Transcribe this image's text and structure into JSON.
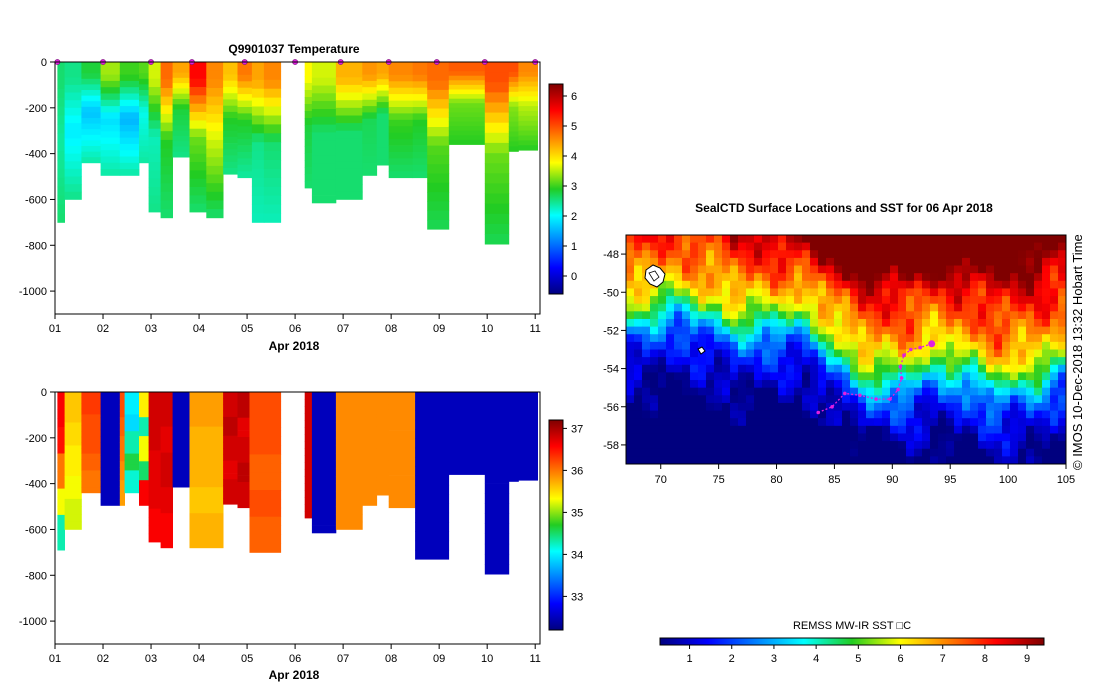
{
  "chart_data": [
    {
      "id": "temperature-section",
      "type": "heatmap",
      "title": "Q9901037  Temperature",
      "xlabel": "Apr 2018",
      "ylabel": "",
      "x_ticks": [
        "01",
        "02",
        "03",
        "04",
        "05",
        "06",
        "07",
        "08",
        "09",
        "10",
        "11"
      ],
      "xlim": [
        1,
        11.1
      ],
      "ylim": [
        -1100,
        0
      ],
      "y_ticks": [
        0,
        -200,
        -400,
        -600,
        -800,
        -1000
      ],
      "colorbar": {
        "range": [
          -0.6,
          6.4
        ],
        "ticks": [
          0,
          1,
          2,
          3,
          4,
          5,
          6
        ],
        "scheme": "jet"
      },
      "surface_markers_day": [
        1.05,
        2.0,
        3.0,
        3.85,
        4.95,
        6.0,
        6.95,
        7.95,
        8.95,
        9.95,
        11.0
      ],
      "profiles": [
        {
          "x0": 1.05,
          "x1": 1.2,
          "depth": 700,
          "surface": 2.6,
          "mid": 2.4,
          "deep": 2.6
        },
        {
          "x0": 1.2,
          "x1": 1.55,
          "depth": 600,
          "surface": 2.5,
          "mid": 1.9,
          "deep": 2.5
        },
        {
          "x0": 1.55,
          "x1": 1.95,
          "depth": 440,
          "surface": 2.8,
          "mid": 1.6,
          "deep": 2.4
        },
        {
          "x0": 1.95,
          "x1": 2.35,
          "depth": 495,
          "surface": 3.4,
          "mid": 1.8,
          "deep": 2.4
        },
        {
          "x0": 2.35,
          "x1": 2.75,
          "depth": 495,
          "surface": 3.0,
          "mid": 1.5,
          "deep": 2.4
        },
        {
          "x0": 2.75,
          "x1": 2.95,
          "depth": 440,
          "surface": 3.1,
          "mid": 2.1,
          "deep": 2.4
        },
        {
          "x0": 2.95,
          "x1": 3.2,
          "depth": 655,
          "surface": 3.6,
          "mid": 2.3,
          "deep": 2.5
        },
        {
          "x0": 3.2,
          "x1": 3.45,
          "depth": 680,
          "surface": 4.8,
          "mid": 2.9,
          "deep": 2.6
        },
        {
          "x0": 3.45,
          "x1": 3.8,
          "depth": 415,
          "surface": 4.4,
          "mid": 2.8,
          "deep": 2.5
        },
        {
          "x0": 3.8,
          "x1": 4.15,
          "depth": 655,
          "surface": 5.5,
          "mid": 3.2,
          "deep": 2.6
        },
        {
          "x0": 4.15,
          "x1": 4.5,
          "depth": 680,
          "surface": 4.6,
          "mid": 3.6,
          "deep": 2.6
        },
        {
          "x0": 4.5,
          "x1": 4.8,
          "depth": 490,
          "surface": 4.2,
          "mid": 2.9,
          "deep": 2.5
        },
        {
          "x0": 4.8,
          "x1": 5.1,
          "depth": 505,
          "surface": 4.7,
          "mid": 2.9,
          "deep": 2.4
        },
        {
          "x0": 5.1,
          "x1": 5.35,
          "depth": 700,
          "surface": 4.4,
          "mid": 2.5,
          "deep": 2.3
        },
        {
          "x0": 5.35,
          "x1": 5.7,
          "depth": 700,
          "surface": 4.6,
          "mid": 2.6,
          "deep": 2.3
        },
        {
          "x0": 6.2,
          "x1": 6.35,
          "depth": 550,
          "surface": 3.8,
          "mid": 2.8,
          "deep": 2.6
        },
        {
          "x0": 6.35,
          "x1": 6.85,
          "depth": 615,
          "surface": 3.6,
          "mid": 2.6,
          "deep": 2.6
        },
        {
          "x0": 6.85,
          "x1": 7.4,
          "depth": 600,
          "surface": 4.3,
          "mid": 2.6,
          "deep": 2.6
        },
        {
          "x0": 7.4,
          "x1": 7.7,
          "depth": 495,
          "surface": 4.5,
          "mid": 2.7,
          "deep": 2.6
        },
        {
          "x0": 7.7,
          "x1": 7.95,
          "depth": 450,
          "surface": 4.4,
          "mid": 2.6,
          "deep": 2.6
        },
        {
          "x0": 7.95,
          "x1": 8.45,
          "depth": 505,
          "surface": 4.6,
          "mid": 3.0,
          "deep": 2.6
        },
        {
          "x0": 8.45,
          "x1": 8.75,
          "depth": 505,
          "surface": 4.7,
          "mid": 2.9,
          "deep": 2.6
        },
        {
          "x0": 8.75,
          "x1": 9.2,
          "depth": 730,
          "surface": 4.8,
          "mid": 3.1,
          "deep": 2.7
        },
        {
          "x0": 9.2,
          "x1": 9.95,
          "depth": 360,
          "surface": 4.9,
          "mid": 3.2,
          "deep": 2.9
        },
        {
          "x0": 9.95,
          "x1": 10.45,
          "depth": 795,
          "surface": 5.0,
          "mid": 3.2,
          "deep": 2.7
        },
        {
          "x0": 10.45,
          "x1": 10.65,
          "depth": 390,
          "surface": 5.0,
          "mid": 3.3,
          "deep": 2.9
        },
        {
          "x0": 10.65,
          "x1": 11.05,
          "depth": 385,
          "surface": 4.6,
          "mid": 3.5,
          "deep": 2.9
        }
      ]
    },
    {
      "id": "salinity-section",
      "type": "heatmap",
      "title": "",
      "xlabel": "Apr 2018",
      "ylabel": "",
      "x_ticks": [
        "01",
        "02",
        "03",
        "04",
        "05",
        "06",
        "07",
        "08",
        "09",
        "10",
        "11"
      ],
      "xlim": [
        1,
        11.1
      ],
      "ylim": [
        -1100,
        0
      ],
      "y_ticks": [
        0,
        -200,
        -400,
        -600,
        -800,
        -1000
      ],
      "colorbar": {
        "range": [
          32.2,
          37.2
        ],
        "ticks": [
          33,
          34,
          35,
          36,
          37
        ],
        "scheme": "jet"
      },
      "profiles": [
        {
          "x0": 1.05,
          "x1": 1.2,
          "depth": 690,
          "values": [
            36.6,
            36.5,
            36.0,
            35.3,
            34.3
          ]
        },
        {
          "x0": 1.2,
          "x1": 1.55,
          "depth": 600,
          "values": [
            35.6,
            35.5,
            35.4,
            35.3,
            35.2
          ]
        },
        {
          "x0": 1.55,
          "x1": 1.95,
          "depth": 440,
          "values": [
            36.3,
            36.2,
            36.2,
            36.1,
            36.0
          ]
        },
        {
          "x0": 1.95,
          "x1": 2.35,
          "depth": 495,
          "values": [
            32.5,
            32.5,
            32.5,
            32.5,
            32.5
          ]
        },
        {
          "x0": 2.35,
          "x1": 2.45,
          "depth": 495,
          "values": [
            36.2,
            36.1,
            36.0,
            35.9,
            35.8
          ]
        },
        {
          "x0": 2.45,
          "x1": 2.75,
          "depth": 440,
          "values": [
            34.0,
            33.9,
            34.3,
            34.6,
            34.2
          ]
        },
        {
          "x0": 2.75,
          "x1": 2.95,
          "depth": 495,
          "values": [
            35.4,
            34.3,
            35.3,
            34.5,
            36.6
          ]
        },
        {
          "x0": 2.95,
          "x1": 3.2,
          "depth": 655,
          "values": [
            36.8,
            36.8,
            36.7,
            36.7,
            36.6
          ]
        },
        {
          "x0": 3.2,
          "x1": 3.45,
          "depth": 680,
          "values": [
            36.8,
            36.7,
            36.8,
            36.7,
            36.6
          ]
        },
        {
          "x0": 3.45,
          "x1": 3.8,
          "depth": 415,
          "values": [
            32.5,
            32.5,
            32.5,
            32.5,
            32.5
          ]
        },
        {
          "x0": 3.8,
          "x1": 4.5,
          "depth": 680,
          "values": [
            35.8,
            35.7,
            35.7,
            35.6,
            35.7
          ]
        },
        {
          "x0": 4.5,
          "x1": 4.8,
          "depth": 490,
          "values": [
            36.8,
            36.9,
            36.8,
            36.7,
            36.8
          ]
        },
        {
          "x0": 4.8,
          "x1": 5.05,
          "depth": 505,
          "values": [
            36.9,
            36.7,
            36.8,
            36.9,
            36.8
          ]
        },
        {
          "x0": 5.05,
          "x1": 5.7,
          "depth": 700,
          "values": [
            36.2,
            36.2,
            36.1,
            36.2,
            36.1
          ]
        },
        {
          "x0": 6.2,
          "x1": 6.35,
          "depth": 550,
          "values": [
            36.8,
            36.8,
            36.8,
            36.8,
            36.8
          ]
        },
        {
          "x0": 6.35,
          "x1": 6.85,
          "depth": 615,
          "values": [
            32.5,
            32.5,
            32.5,
            32.5,
            32.5
          ]
        },
        {
          "x0": 6.85,
          "x1": 7.4,
          "depth": 600,
          "values": [
            35.9,
            35.9,
            35.9,
            35.9,
            35.9
          ]
        },
        {
          "x0": 7.4,
          "x1": 7.7,
          "depth": 495,
          "values": [
            35.9,
            35.9,
            35.9,
            35.9,
            35.9
          ]
        },
        {
          "x0": 7.7,
          "x1": 7.95,
          "depth": 450,
          "values": [
            35.9,
            35.9,
            35.9,
            35.9,
            35.9
          ]
        },
        {
          "x0": 7.95,
          "x1": 8.5,
          "depth": 505,
          "values": [
            35.9,
            35.9,
            35.9,
            35.9,
            35.9
          ]
        },
        {
          "x0": 8.5,
          "x1": 9.2,
          "depth": 730,
          "values": [
            32.5,
            32.5,
            32.5,
            32.5,
            32.5
          ]
        },
        {
          "x0": 9.2,
          "x1": 9.95,
          "depth": 360,
          "values": [
            32.5,
            32.5,
            32.5,
            32.5,
            32.5
          ]
        },
        {
          "x0": 9.95,
          "x1": 10.45,
          "depth": 795,
          "values": [
            32.5,
            32.5,
            32.5,
            32.5,
            32.5
          ]
        },
        {
          "x0": 10.45,
          "x1": 10.65,
          "depth": 390,
          "values": [
            32.5,
            32.5,
            32.5,
            32.5,
            32.5
          ]
        },
        {
          "x0": 10.65,
          "x1": 11.05,
          "depth": 385,
          "values": [
            32.5,
            32.5,
            32.5,
            32.5,
            32.5
          ]
        }
      ]
    },
    {
      "id": "sst-map",
      "type": "heatmap",
      "title": "SealCTD Surface Locations and SST for 06 Apr 2018",
      "xlabel": "",
      "ylabel": "",
      "x_ticks": [
        70,
        75,
        80,
        85,
        90,
        95,
        100,
        105
      ],
      "y_ticks": [
        -48,
        -50,
        -52,
        -54,
        -56,
        -58
      ],
      "xlim": [
        67,
        105
      ],
      "ylim": [
        -59,
        -47
      ],
      "colorbar": {
        "label": "REMSS MW-IR SST □C",
        "range": [
          0.3,
          9.4
        ],
        "ticks": [
          1,
          2,
          3,
          4,
          5,
          6,
          7,
          8,
          9
        ],
        "scheme": "jet"
      },
      "surface_positions": [
        {
          "lon": 93.4,
          "lat": -52.7
        },
        {
          "lon": 92.4,
          "lat": -52.9
        },
        {
          "lon": 91.6,
          "lat": -53.0
        },
        {
          "lon": 91.0,
          "lat": -53.3
        },
        {
          "lon": 90.7,
          "lat": -53.9
        },
        {
          "lon": 90.8,
          "lat": -54.5
        },
        {
          "lon": 90.5,
          "lat": -55.1
        },
        {
          "lon": 89.8,
          "lat": -55.6
        },
        {
          "lon": 88.6,
          "lat": -55.6
        },
        {
          "lon": 87.2,
          "lat": -55.4
        },
        {
          "lon": 85.9,
          "lat": -55.3
        },
        {
          "lon": 84.8,
          "lat": -56.0
        },
        {
          "lon": 83.6,
          "lat": -56.3
        }
      ]
    }
  ],
  "copyright": "© IMOS 10-Dec-2018 13:32 Hobart Time"
}
